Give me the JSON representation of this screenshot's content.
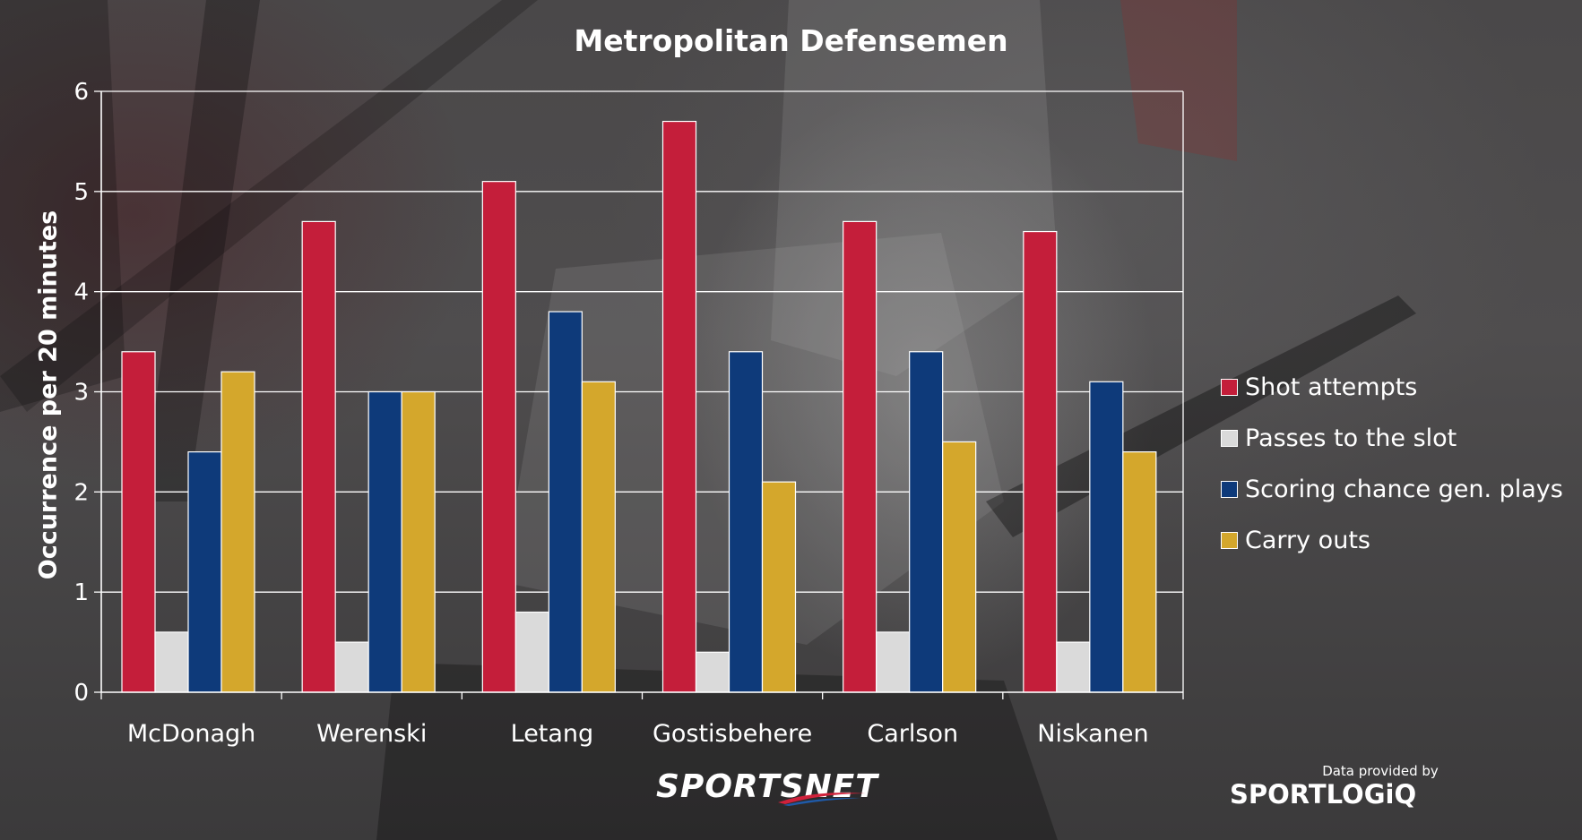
{
  "chart_data": {
    "type": "bar",
    "title": "Metropolitan Defensemen",
    "ylabel": "Occurrence per 20 minutes",
    "xlabel": "",
    "ylim": [
      0,
      6
    ],
    "yticks": [
      0,
      1,
      2,
      3,
      4,
      5,
      6
    ],
    "grid": true,
    "legend_position": "right",
    "categories": [
      "McDonagh",
      "Werenski",
      "Letang",
      "Gostisbehere",
      "Carlson",
      "Niskanen"
    ],
    "series": [
      {
        "name": "Shot attempts",
        "color": "#c41e3a",
        "values": [
          3.4,
          4.7,
          5.1,
          5.7,
          4.7,
          4.6
        ]
      },
      {
        "name": "Passes to the slot",
        "color": "#dadada",
        "values": [
          0.6,
          0.5,
          0.8,
          0.4,
          0.6,
          0.5
        ]
      },
      {
        "name": "Scoring chance gen. plays",
        "color": "#0e3a7a",
        "values": [
          2.4,
          3.0,
          3.8,
          3.4,
          3.4,
          3.1
        ]
      },
      {
        "name": "Carry outs",
        "color": "#d4a72c",
        "values": [
          3.2,
          3.0,
          3.1,
          2.1,
          2.5,
          2.4
        ]
      }
    ]
  },
  "branding": {
    "sportsnet": "SPORTSNET",
    "credit_note": "Data provided by",
    "sportlogiq": "SPORTLOGiQ"
  }
}
